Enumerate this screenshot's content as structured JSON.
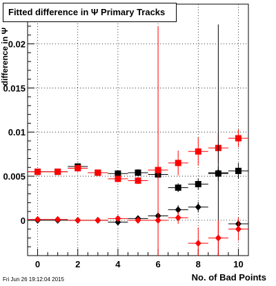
{
  "title": "Fitted difference in  Ψ  Primary Tracks",
  "ylabel": "difference in  Ψ",
  "xlabel": "No. of Bad Points",
  "timestamp": "Fri Jun 26 19:12:04 2015",
  "chart_data": {
    "type": "scatter",
    "xlim": [
      -0.5,
      10.5
    ],
    "ylim": [
      -0.004,
      0.0245
    ],
    "x_ticks": [
      0,
      2,
      4,
      6,
      8,
      10
    ],
    "x_tick_labels": [
      "0",
      "2",
      "4",
      "6",
      "8",
      "10"
    ],
    "y_ticks": [
      0,
      0.005,
      0.01,
      0.015,
      0.02
    ],
    "y_tick_labels": [
      "0",
      "0.005",
      "0.01",
      "0.015",
      "0.02"
    ],
    "grid": true,
    "series": [
      {
        "marker": "square",
        "color": "#000000",
        "x": [
          0,
          1,
          2,
          3,
          4,
          5,
          6,
          7,
          8,
          9,
          10
        ],
        "y": [
          0.0055,
          0.0055,
          0.0061,
          0.0054,
          0.0053,
          0.0054,
          0.0052,
          0.0037,
          0.0041,
          0.0053,
          0.0056
        ],
        "yerr": [
          0.0002,
          0.0002,
          0.0002,
          0.0002,
          0.0003,
          0.0004,
          0.0005,
          0.0005,
          0.0006,
          0.0008,
          0.0009
        ]
      },
      {
        "marker": "square",
        "color": "#ff0000",
        "x": [
          0,
          1,
          2,
          3,
          4,
          5,
          6,
          7,
          8,
          9,
          10
        ],
        "y": [
          0.0055,
          0.0055,
          0.0059,
          0.0054,
          0.0047,
          0.0045,
          0.0057,
          0.0065,
          0.0078,
          0.0082,
          0.0093
        ],
        "yerr": [
          0.0003,
          0.0003,
          0.0004,
          0.0003,
          0.0004,
          0.0004,
          0.0006,
          0.0014,
          0.0016,
          0.0017,
          0.001
        ]
      },
      {
        "marker": "diamond",
        "color": "#000000",
        "x": [
          0,
          1,
          2,
          3,
          4,
          5,
          6,
          7,
          8,
          9,
          10
        ],
        "y": [
          0.0,
          0.0,
          0.0,
          0.0,
          -0.0002,
          0.0002,
          0.0005,
          0.0012,
          0.0015,
          0.0054,
          -0.0004
        ],
        "yerr": [
          0.0002,
          0.0002,
          0.0002,
          0.0002,
          0.0003,
          0.0003,
          0.0004,
          0.0005,
          0.0006,
          0.0168,
          0.0006
        ]
      },
      {
        "marker": "diamond",
        "color": "#ff0000",
        "x": [
          0,
          1,
          2,
          3,
          4,
          5,
          6,
          7,
          8,
          9,
          10
        ],
        "y": [
          0.0001,
          0.0001,
          0.0,
          0.0,
          0.0002,
          0.0,
          0.0,
          0.0003,
          -0.0026,
          -0.002,
          -0.001
        ],
        "yerr": [
          0.0002,
          0.0002,
          0.0002,
          0.0002,
          0.0003,
          0.0003,
          0.022,
          0.0007,
          0.0018,
          0.002,
          0.0013
        ]
      }
    ]
  }
}
